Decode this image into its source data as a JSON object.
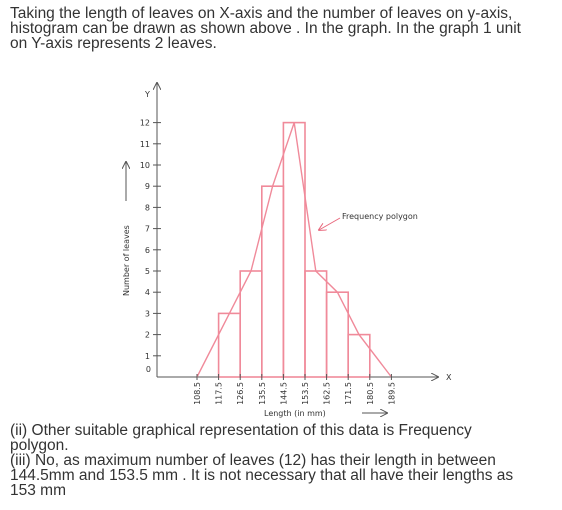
{
  "intro": {
    "lines": [
      "Taking the length of leaves on X-axis and the number of leaves on y-axis,",
      "histogram can be drawn as shown above . In the graph. In the graph 1 unit",
      "on Y-axis represents 2 leaves."
    ]
  },
  "chart_data": {
    "type": "bar",
    "subtype": "histogram-with-frequency-polygon",
    "xlabel": "Length (in mm)",
    "ylabel": "Number of leaves",
    "x_axis_letter": "X",
    "y_axis_letter": "Y",
    "origin_label": "0",
    "x_ticks": [
      "108.5",
      "117.5",
      "126.5",
      "135.5",
      "144.5",
      "153.5",
      "162.5",
      "171.5",
      "180.5",
      "189.5"
    ],
    "y_ticks": [
      "1",
      "2",
      "3",
      "4",
      "5",
      "6",
      "7",
      "8",
      "9",
      "10",
      "11",
      "12"
    ],
    "ylim": [
      0,
      12
    ],
    "bins": [
      [
        117.5,
        126.5
      ],
      [
        126.5,
        135.5
      ],
      [
        135.5,
        144.5
      ],
      [
        144.5,
        153.5
      ],
      [
        153.5,
        162.5
      ],
      [
        162.5,
        171.5
      ],
      [
        171.5,
        180.5
      ]
    ],
    "values": [
      3,
      5,
      9,
      12,
      5,
      4,
      2
    ],
    "polygon": {
      "name": "Frequency polygon",
      "x": [
        108.5,
        122,
        131,
        140,
        149,
        158,
        167,
        176,
        189.5
      ],
      "y": [
        0,
        3,
        5,
        9,
        12,
        5,
        4,
        2,
        0
      ]
    },
    "colors": {
      "bars": "#f08a9a",
      "axes": "#555555",
      "arrow": "#e8677c",
      "text": "#333333"
    }
  },
  "notes": {
    "lines": [
      "(ii) Other suitable graphical representation of this data is Frequency",
      "polygon.",
      "(iii) No, as maximum number of leaves (12) has their length in between",
      "144.5mm and 153.5 mm . It is not necessary that all have their lengths as",
      "153 mm"
    ]
  }
}
